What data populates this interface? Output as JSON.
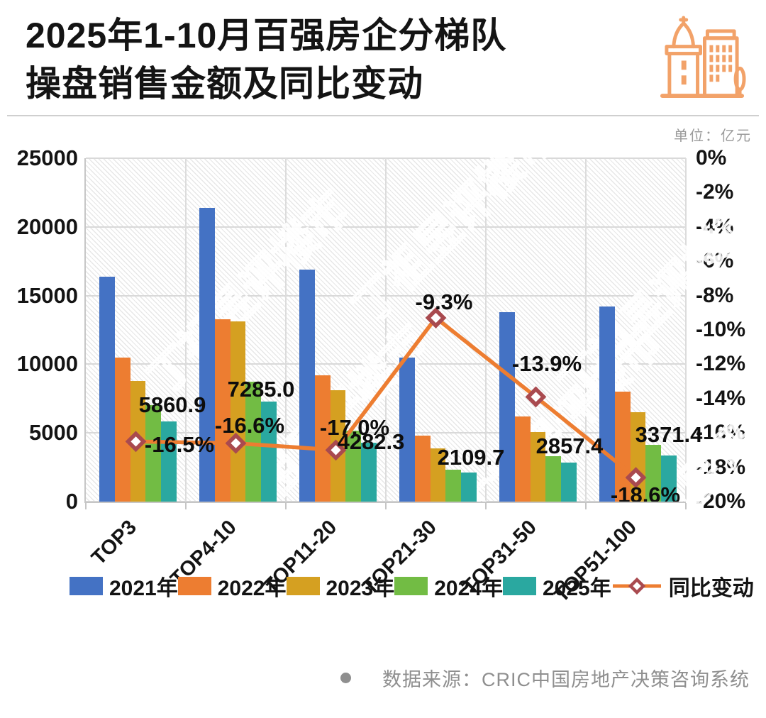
{
  "title": {
    "line1": "2025年1-10月百强房企分梯队",
    "line2": "操盘销售金额及同比变动"
  },
  "unit_label": "单位：亿元",
  "watermark": "丁祖昱评楼市",
  "icons": {
    "header": "buildings-icon"
  },
  "source": {
    "text": "数据来源：CRIC中国房地产决策咨询系统"
  },
  "chart_data": {
    "type": "bar",
    "subtype": "grouped bars with overlaid line on secondary inverted percent axis",
    "categories": [
      "TOP3",
      "TOP4-10",
      "TOP11-20",
      "TOP21-30",
      "TOP31-50",
      "TOP51-100"
    ],
    "series": [
      {
        "name": "2021年",
        "color": "#4472C4",
        "values": [
          16400,
          21400,
          16900,
          10500,
          13800,
          14200
        ]
      },
      {
        "name": "2022年",
        "color": "#ED7D31",
        "values": [
          10500,
          13300,
          9200,
          4800,
          6200,
          8000
        ]
      },
      {
        "name": "2023年",
        "color": "#D5A021",
        "values": [
          8800,
          13100,
          8100,
          3850,
          5050,
          6500
        ]
      },
      {
        "name": "2024年",
        "color": "#72BC44",
        "values": [
          7018,
          8735,
          5159,
          2326,
          3319,
          4142
        ]
      },
      {
        "name": "2025年",
        "color": "#2AA8A0",
        "values": [
          5860.9,
          7285.0,
          4282.3,
          2109.7,
          2857.4,
          3371.4
        ],
        "data_labels": [
          "5860.9",
          "7285.0",
          "4282.3",
          "2109.7",
          "2857.4",
          "3371.4"
        ]
      }
    ],
    "line_series": {
      "name": "同比变动",
      "color": "#ED7D31",
      "marker_border": "#A94A4F",
      "marker_fill": "#FFFFFF",
      "values_pct": [
        -16.5,
        -16.6,
        -17.0,
        -9.3,
        -13.9,
        -18.6
      ],
      "labels": [
        "-16.5%",
        "-16.6%",
        "-17.0%",
        "-9.3%",
        "-13.9%",
        "-18.6%"
      ]
    },
    "left_axis": {
      "min": 0,
      "max": 25000,
      "ticks": [
        "25000",
        "20000",
        "15000",
        "10000",
        "5000",
        "0"
      ]
    },
    "right_axis": {
      "min": -20,
      "max": 0,
      "ticks": [
        "0%",
        "-2%",
        "-4%",
        "-6%",
        "-8%",
        "-10%",
        "-12%",
        "-14%",
        "-16%",
        "-18%",
        "-20%"
      ]
    },
    "legend": [
      "2021年",
      "2022年",
      "2023年",
      "2024年",
      "2025年",
      "同比变动"
    ],
    "grid": true,
    "legend_position": "bottom",
    "plot_background": "diagonal-hatch"
  }
}
